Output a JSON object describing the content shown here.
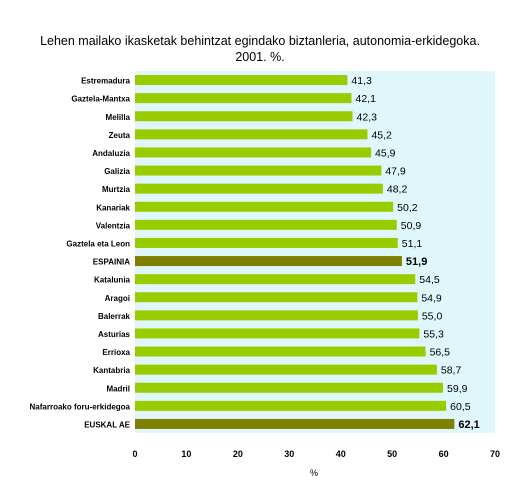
{
  "chart_data": {
    "type": "bar",
    "orientation": "horizontal",
    "title": "Lehen mailako ikasketak behintzat egindako biztanleria, autonomia-erkidegoka. 2001. %.",
    "xlabel": "%",
    "ylabel": "",
    "xlim": [
      0,
      70
    ],
    "xticks": [
      0,
      10,
      20,
      30,
      40,
      50,
      60,
      70
    ],
    "grid": false,
    "legend": "none",
    "plot_background": "#dff7fb",
    "colors": {
      "default": "#99cc00",
      "highlight": "#808000"
    },
    "categories": [
      "Estremadura",
      "Gaztela-Mantxa",
      "Melilla",
      "Zeuta",
      "Andaluzia",
      "Galizia",
      "Murtzia",
      "Kanariak",
      "Valentzia",
      "Gaztela eta Leon",
      "ESPAINIA",
      "Katalunia",
      "Aragoi",
      "Balerrak",
      "Asturias",
      "Errioxa",
      "Kantabria",
      "Madril",
      "Nafarroako foru-erkidegoa",
      "EUSKAL AE"
    ],
    "values": [
      41.3,
      42.1,
      42.3,
      45.2,
      45.9,
      47.9,
      48.2,
      50.2,
      50.9,
      51.1,
      51.9,
      54.5,
      54.9,
      55.0,
      55.3,
      56.5,
      58.7,
      59.9,
      60.5,
      62.1
    ],
    "value_labels": [
      "41,3",
      "42,1",
      "42,3",
      "45,2",
      "45,9",
      "47,9",
      "48,2",
      "50,2",
      "50,9",
      "51,1",
      "51,9",
      "54,5",
      "54,9",
      "55,0",
      "55,3",
      "56,5",
      "58,7",
      "59,9",
      "60,5",
      "62,1"
    ],
    "highlighted": [
      "ESPAINIA",
      "EUSKAL AE"
    ]
  }
}
